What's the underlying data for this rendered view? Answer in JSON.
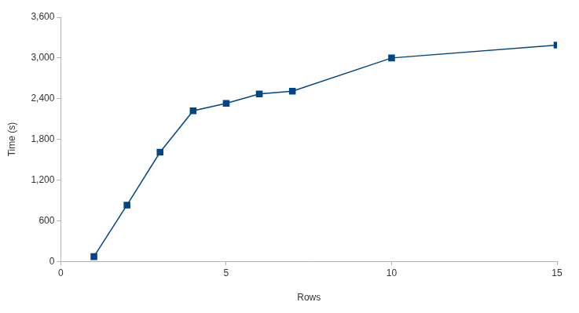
{
  "chart_data": {
    "type": "line",
    "x_label": "Rows",
    "y_label": "Time (s)",
    "x": [
      1,
      2,
      3,
      4,
      5,
      6,
      7,
      10,
      15
    ],
    "values": [
      70,
      830,
      1610,
      2220,
      2330,
      2470,
      2510,
      3000,
      3190
    ],
    "color": "#004586",
    "marker": "square",
    "line_style": "solid",
    "xlim": [
      0,
      15
    ],
    "xticks": [
      0,
      5,
      10,
      15
    ],
    "ylim": [
      0,
      3600
    ],
    "yticks": [
      0,
      600,
      1200,
      1800,
      2400,
      3000,
      3600
    ],
    "grid": false
  }
}
